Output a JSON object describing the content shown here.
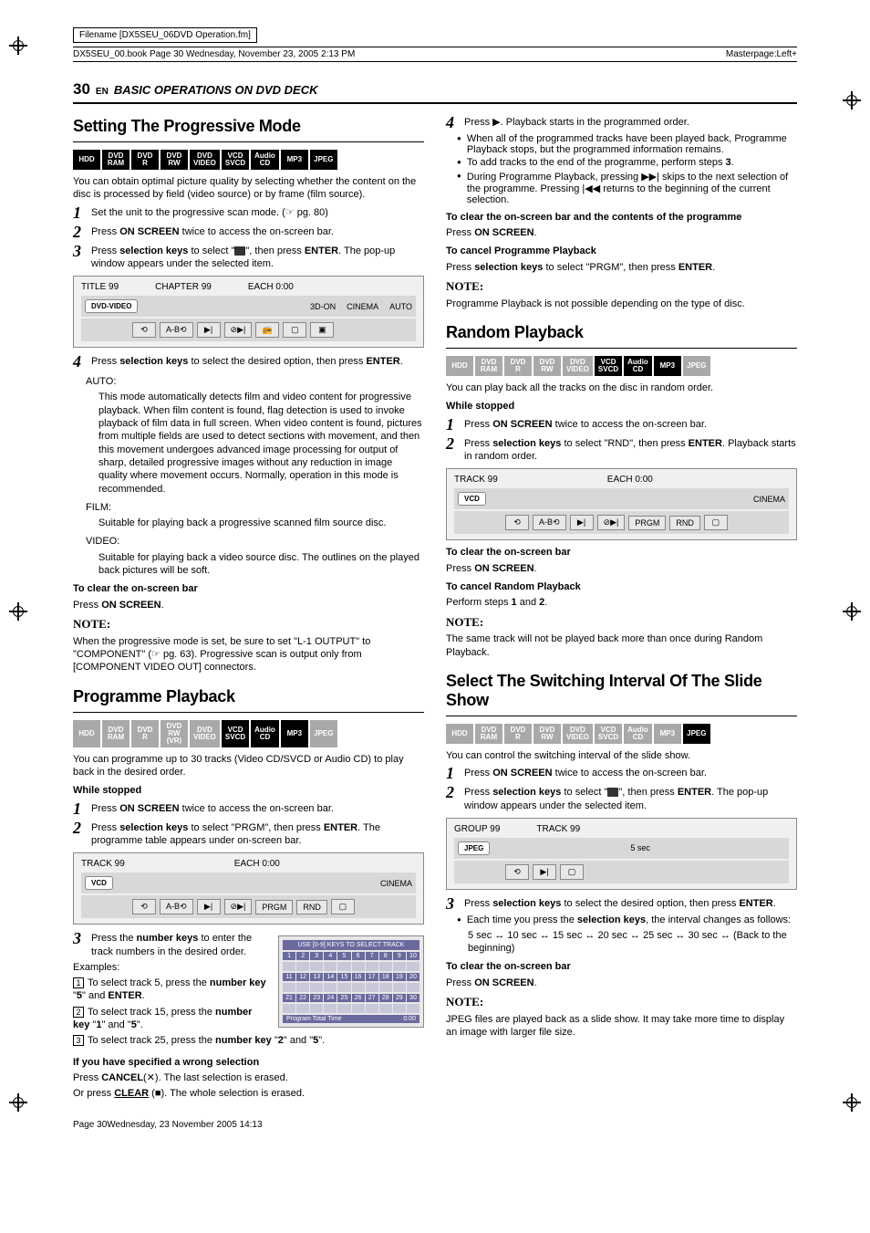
{
  "meta": {
    "filename": "Filename [DX5SEU_06DVD Operation.fm]",
    "book_line": "DX5SEU_00.book  Page 30  Wednesday, November 23, 2005  2:13 PM",
    "masterpage": "Masterpage:Left+",
    "page_number": "30",
    "page_lang": "EN",
    "section_title": "BASIC OPERATIONS ON DVD DECK",
    "footer": "Page 30Wednesday, 23 November 2005  14:13"
  },
  "formats_all": [
    "HDD",
    "DVD RAM",
    "DVD R",
    "DVD RW",
    "DVD VIDEO",
    "VCD SVCD",
    "Audio CD",
    "MP3",
    "JPEG"
  ],
  "progressive": {
    "title": "Setting The Progressive Mode",
    "enabled": [
      true,
      true,
      true,
      true,
      true,
      true,
      true,
      true,
      true
    ],
    "intro": "You can obtain optimal picture quality by selecting whether the content on the disc is processed by field (video source) or by frame (film source).",
    "step1": "Set the unit to the progressive scan mode. (☞ pg. 80)",
    "step2_a": "Press ",
    "step2_b": "ON SCREEN",
    "step2_c": " twice to access the on-screen bar.",
    "step3_a": "Press ",
    "step3_b": "selection keys",
    "step3_c": " to select \"",
    "step3_d": "\", then press ",
    "step3_e": "ENTER",
    "step3_f": ". The pop-up window appears under the selected item.",
    "osd": {
      "title": "TITLE 99",
      "chapter": "CHAPTER 99",
      "each": "EACH 0:00",
      "badge": "DVD-VIDEO",
      "right": [
        "3D-ON",
        "CINEMA",
        "AUTO"
      ]
    },
    "step4_a": "Press ",
    "step4_b": "selection keys",
    "step4_c": " to select the desired option, then press ",
    "step4_d": "ENTER",
    "step4_e": ".",
    "auto_label": "AUTO:",
    "auto_text": "This mode automatically detects film and video content for progressive playback. When film content is found, flag detection is used to invoke playback of film data in full screen. When video content is found, pictures from multiple fields are used to detect sections with movement, and then this movement undergoes advanced image processing for output of sharp, detailed progressive images without any reduction in image quality where movement occurs. Normally, operation in this mode is recommended.",
    "film_label": "FILM:",
    "film_text": "Suitable for playing back a progressive scanned film source disc.",
    "video_label": "VIDEO:",
    "video_text": "Suitable for playing back a video source disc. The outlines on the played back pictures will be soft.",
    "clear_h": "To clear the on-screen bar",
    "clear_t_a": "Press ",
    "clear_t_b": "ON SCREEN",
    "clear_t_c": ".",
    "note": "When the progressive mode is set, be sure to set \"L-1 OUTPUT\" to \"COMPONENT\" (☞ pg. 63). Progressive scan is output only from [COMPONENT VIDEO OUT] connectors."
  },
  "programme": {
    "title": "Programme Playback",
    "enabled": [
      false,
      false,
      false,
      false,
      false,
      true,
      true,
      true,
      false
    ],
    "formats_override": [
      "HDD",
      "DVD RAM",
      "DVD R",
      "DVD RW (VR)",
      "DVD VIDEO",
      "VCD SVCD",
      "Audio CD",
      "MP3",
      "JPEG"
    ],
    "intro": "You can programme up to 30 tracks (Video CD/SVCD or Audio CD) to play back in the desired order.",
    "while_stopped": "While stopped",
    "step1_a": "Press ",
    "step1_b": "ON SCREEN",
    "step1_c": " twice to access the on-screen bar.",
    "step2_a": "Press ",
    "step2_b": "selection keys",
    "step2_c": " to select \"PRGM\", then press ",
    "step2_d": "ENTER",
    "step2_e": ". The programme table appears under on-screen bar.",
    "osd": {
      "track": "TRACK 99",
      "each": "EACH 0:00",
      "badge": "VCD",
      "cinema": "CINEMA",
      "cells": [
        "⟲",
        "A-B⟲",
        "▶|",
        "⊘▶|",
        "PRGM",
        "RND",
        "▢"
      ]
    },
    "step3_a": "Press the ",
    "step3_b": "number keys",
    "step3_c": " to enter the track numbers in the desired order.",
    "examples": "Examples:",
    "ex1_a": "To select track 5, press the ",
    "ex1_b": "number key",
    "ex1_c": " \"",
    "ex1_d": "5",
    "ex1_e": "\" and ",
    "ex1_f": "ENTER",
    "ex1_g": ".",
    "ex2_a": "To select track 15, press the ",
    "ex2_b": "number key",
    "ex2_c": " \"",
    "ex2_d": "1",
    "ex2_e": "\" and \"",
    "ex2_f": "5",
    "ex2_g": "\".",
    "ex3_a": "To select track 25, press the ",
    "ex3_b": "number key",
    "ex3_c": " \"",
    "ex3_d": "2",
    "ex3_e": "\" and \"",
    "ex3_f": "5",
    "ex3_g": "\".",
    "prog_table_title": "USE [0-9] KEYS TO SELECT TRACK",
    "prog_rows": [
      [
        "1",
        "2",
        "3",
        "4",
        "5",
        "6",
        "7",
        "8",
        "9",
        "10"
      ],
      [
        "11",
        "12",
        "13",
        "14",
        "15",
        "16",
        "17",
        "18",
        "19",
        "20"
      ],
      [
        "21",
        "22",
        "23",
        "24",
        "25",
        "26",
        "27",
        "28",
        "29",
        "30"
      ]
    ],
    "prog_total_label": "Program Total Time",
    "prog_total_value": "0:00",
    "wrong_h": "If you have specified a wrong selection",
    "wrong_1_a": "Press ",
    "wrong_1_b": "CANCEL",
    "wrong_1_c": "(✕). The last selection is erased.",
    "wrong_2_a": "Or press ",
    "wrong_2_b": "CLEAR",
    "wrong_2_c": " (■). The whole selection is erased."
  },
  "programme_right": {
    "step4_a": "Press ▶. Playback starts in the programmed order.",
    "b1": "When all of the programmed tracks have been played back, Programme Playback stops, but the programmed information remains.",
    "b2_a": "To add tracks to the end of the programme, perform steps ",
    "b2_b": "3",
    "b2_c": ".",
    "b3": "During Programme Playback, pressing ▶▶| skips to the next selection of the programme. Pressing |◀◀ returns to the beginning of the current selection.",
    "clear_h": "To clear the on-screen bar and the contents of the programme",
    "clear_t_a": "Press ",
    "clear_t_b": "ON SCREEN",
    "clear_t_c": ".",
    "cancel_h": "To cancel Programme Playback",
    "cancel_t_a": "Press ",
    "cancel_t_b": "selection keys",
    "cancel_t_c": " to select \"PRGM\", then press ",
    "cancel_t_d": "ENTER",
    "cancel_t_e": ".",
    "note": "Programme Playback is not possible depending on the type of disc."
  },
  "random": {
    "title": "Random Playback",
    "enabled": [
      false,
      false,
      false,
      false,
      false,
      true,
      true,
      true,
      false
    ],
    "intro": "You can play back all the tracks on the disc in random order.",
    "while_stopped": "While stopped",
    "step1_a": "Press ",
    "step1_b": "ON SCREEN",
    "step1_c": " twice to access the on-screen bar.",
    "step2_a": "Press ",
    "step2_b": "selection keys",
    "step2_c": " to select \"RND\", then press ",
    "step2_d": "ENTER",
    "step2_e": ". Playback starts in random order.",
    "osd": {
      "track": "TRACK 99",
      "each": "EACH 0:00",
      "badge": "VCD",
      "cinema": "CINEMA",
      "cells": [
        "⟲",
        "A-B⟲",
        "▶|",
        "⊘▶|",
        "PRGM",
        "RND",
        "▢"
      ]
    },
    "clear_h": "To clear the on-screen bar",
    "clear_t_a": "Press ",
    "clear_t_b": "ON SCREEN",
    "clear_t_c": ".",
    "cancel_h": "To cancel Random Playback",
    "cancel_t_a": "Perform steps ",
    "cancel_t_b": "1",
    "cancel_t_c": " and ",
    "cancel_t_d": "2",
    "cancel_t_e": ".",
    "note": "The same track will not be played back more than once during Random Playback."
  },
  "slide": {
    "title": "Select The Switching Interval Of The Slide Show",
    "enabled": [
      false,
      false,
      false,
      false,
      false,
      false,
      false,
      false,
      true
    ],
    "intro": "You can control the switching interval of the slide show.",
    "step1_a": "Press ",
    "step1_b": "ON SCREEN",
    "step1_c": " twice to access the on-screen bar.",
    "step2_a": "Press ",
    "step2_b": "selection keys",
    "step2_c": " to select \"",
    "step2_d": "\", then press ",
    "step2_e": "ENTER",
    "step2_f": ". The pop-up window appears under the selected item.",
    "osd": {
      "group": "GROUP 99",
      "track": "TRACK 99",
      "badge": "JPEG",
      "sec": "5 sec",
      "cells": [
        "⟲",
        "▶|",
        "▢"
      ]
    },
    "step3_a": "Press ",
    "step3_b": "selection keys",
    "step3_c": " to select the desired option, then press ",
    "step3_d": "ENTER",
    "step3_e": ".",
    "b1_a": "Each time you press the ",
    "b1_b": "selection keys",
    "b1_c": ", the interval changes as follows:",
    "seq": "5 sec ↔ 10 sec ↔ 15 sec ↔ 20 sec ↔ 25 sec ↔ 30 sec ↔ (Back to the beginning)",
    "clear_h": "To clear the on-screen bar",
    "clear_t_a": "Press ",
    "clear_t_b": "ON SCREEN",
    "clear_t_c": ".",
    "note": "JPEG files are played back as a slide show. It may take more time to display an image with larger file size."
  }
}
